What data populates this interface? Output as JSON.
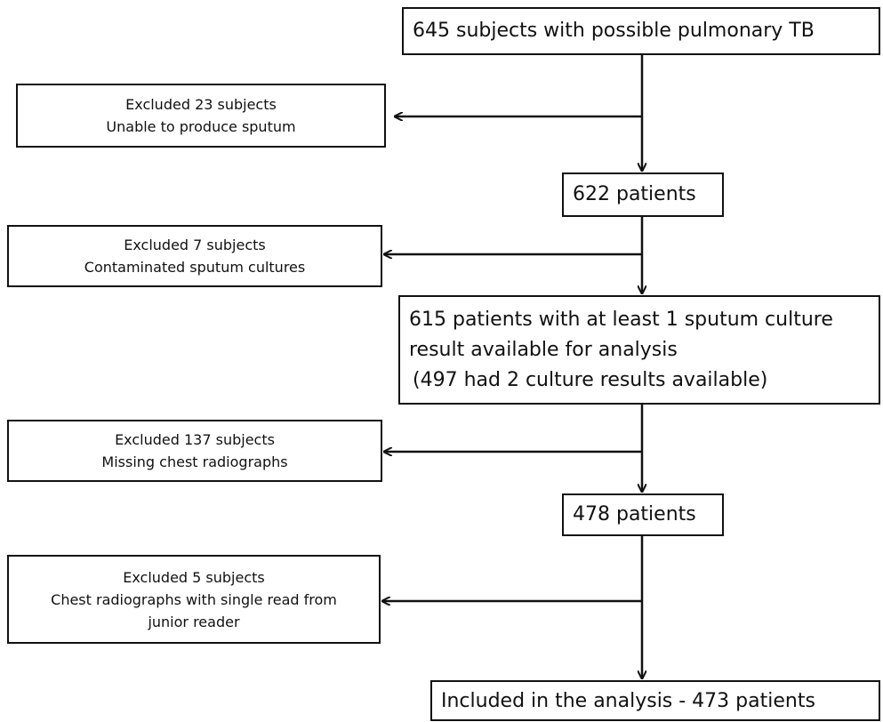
{
  "main_steps": {
    "step1": "645 subjects with possible pulmonary TB",
    "step2": "622 patients",
    "step3": {
      "line1": "615 patients with at least 1 sputum culture",
      "line2": "result available for analysis",
      "line3": "(497 had 2 culture results available)"
    },
    "step4": "478 patients",
    "step5": "Included in the analysis - 473 patients"
  },
  "exclusions": {
    "ex1": {
      "line1": "Excluded 23 subjects",
      "line2": "Unable to produce sputum"
    },
    "ex2": {
      "line1": "Excluded 7 subjects",
      "line2": "Contaminated sputum cultures"
    },
    "ex3": {
      "line1": "Excluded 137 subjects",
      "line2": "Missing chest radiographs"
    },
    "ex4": {
      "line1": "Excluded 5 subjects",
      "line2": "Chest radiographs with single read from",
      "line3": "junior reader"
    }
  }
}
